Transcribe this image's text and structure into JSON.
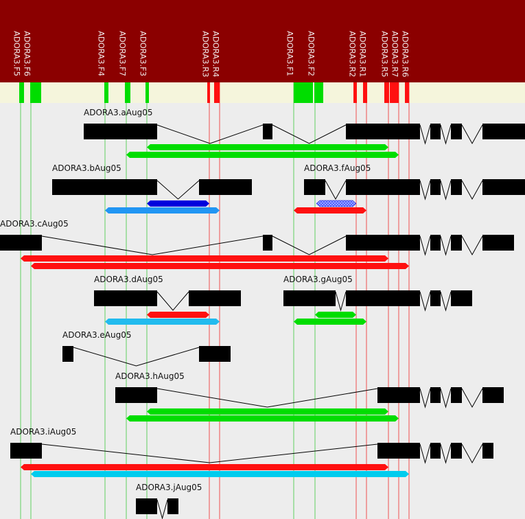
{
  "primers": [
    "ADORA3.F5",
    "ADORA3.F6",
    "ADORA3.F4",
    "ADORA3.F7",
    "ADORA3.F3",
    "ADORA3.R3",
    "ADORA3.R4",
    "ADORA3.F1",
    "ADORA3.F2",
    "ADORA3.R2",
    "ADORA3.R1",
    "ADORA3.R5",
    "ADORA3.R7",
    "ADORA3.R6"
  ],
  "transcripts": [
    "ADORA3.aAug05",
    "ADORA3.bAug05",
    "ADORA3.fAug05",
    "ADORA3.cAug05",
    "ADORA3.dAug05",
    "ADORA3.gAug05",
    "ADORA3.eAug05",
    "ADORA3.hAug05",
    "ADORA3.iAug05",
    "ADORA3.jAug05"
  ]
}
